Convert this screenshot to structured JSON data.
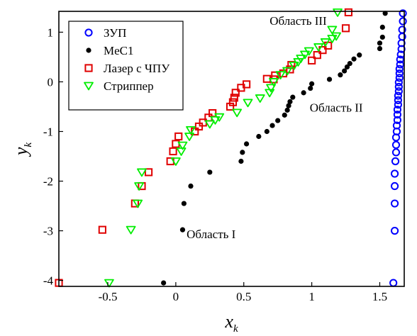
{
  "chart_data": {
    "type": "scatter",
    "title": "",
    "xlabel": "x",
    "xlabel_sub": "k",
    "ylabel": "y",
    "ylabel_sub": "k",
    "xlim": [
      -0.86,
      1.68
    ],
    "ylim": [
      -4.12,
      1.42
    ],
    "x_ticks": [
      -0.5,
      0,
      0.5,
      1,
      1.5
    ],
    "x_tick_labels": [
      "-0.5",
      "0",
      "0.5",
      "1",
      "1.5"
    ],
    "y_ticks": [
      -4,
      -3,
      -2,
      -1,
      0,
      1
    ],
    "y_tick_labels": [
      "-4",
      "-3",
      "-2",
      "-1",
      "0",
      "1"
    ],
    "grid": false,
    "legend_position": "top-left",
    "series": [
      {
        "name": "ЗУП",
        "marker": "circle-open",
        "color": "#0000ff",
        "points": [
          [
            1.6,
            -4.05
          ],
          [
            1.61,
            -3.0
          ],
          [
            1.61,
            -2.45
          ],
          [
            1.61,
            -2.1
          ],
          [
            1.61,
            -1.85
          ],
          [
            1.615,
            -1.6
          ],
          [
            1.62,
            -1.42
          ],
          [
            1.62,
            -1.27
          ],
          [
            1.62,
            -1.12
          ],
          [
            1.625,
            -1.0
          ],
          [
            1.625,
            -0.88
          ],
          [
            1.63,
            -0.77
          ],
          [
            1.63,
            -0.66
          ],
          [
            1.63,
            -0.56
          ],
          [
            1.635,
            -0.46
          ],
          [
            1.635,
            -0.37
          ],
          [
            1.635,
            -0.28
          ],
          [
            1.64,
            -0.19
          ],
          [
            1.64,
            -0.1
          ],
          [
            1.64,
            -0.01
          ],
          [
            1.645,
            0.08
          ],
          [
            1.645,
            0.17
          ],
          [
            1.645,
            0.26
          ],
          [
            1.65,
            0.35
          ],
          [
            1.65,
            0.45
          ],
          [
            1.655,
            0.55
          ],
          [
            1.66,
            0.66
          ],
          [
            1.66,
            0.78
          ],
          [
            1.665,
            0.91
          ],
          [
            1.665,
            1.05
          ],
          [
            1.67,
            1.22
          ],
          [
            1.67,
            1.38
          ]
        ]
      },
      {
        "name": "MeC1",
        "marker": "dot",
        "color": "#000000",
        "points": [
          [
            -0.09,
            -4.05
          ],
          [
            0.05,
            -2.98
          ],
          [
            0.06,
            -2.45
          ],
          [
            0.11,
            -2.1
          ],
          [
            0.25,
            -1.82
          ],
          [
            0.48,
            -1.6
          ],
          [
            0.49,
            -1.42
          ],
          [
            0.52,
            -1.25
          ],
          [
            0.61,
            -1.1
          ],
          [
            0.67,
            -1.0
          ],
          [
            0.71,
            -0.88
          ],
          [
            0.75,
            -0.78
          ],
          [
            0.8,
            -0.67
          ],
          [
            0.82,
            -0.57
          ],
          [
            0.83,
            -0.48
          ],
          [
            0.84,
            -0.4
          ],
          [
            0.86,
            -0.31
          ],
          [
            0.94,
            -0.22
          ],
          [
            0.99,
            -0.13
          ],
          [
            1.0,
            -0.04
          ],
          [
            1.13,
            0.05
          ],
          [
            1.21,
            0.14
          ],
          [
            1.24,
            0.22
          ],
          [
            1.26,
            0.3
          ],
          [
            1.28,
            0.37
          ],
          [
            1.31,
            0.46
          ],
          [
            1.35,
            0.54
          ],
          [
            1.5,
            0.67
          ],
          [
            1.5,
            0.78
          ],
          [
            1.52,
            0.9
          ],
          [
            1.52,
            1.1
          ],
          [
            1.54,
            1.38
          ]
        ]
      },
      {
        "name": "Лазер с ЧПУ",
        "marker": "square-open",
        "color": "#e00000",
        "points": [
          [
            -0.86,
            -4.05
          ],
          [
            -0.54,
            -2.98
          ],
          [
            -0.3,
            -2.45
          ],
          [
            -0.25,
            -2.1
          ],
          [
            -0.2,
            -1.82
          ],
          [
            -0.04,
            -1.6
          ],
          [
            -0.02,
            -1.4
          ],
          [
            0.0,
            -1.25
          ],
          [
            0.02,
            -1.1
          ],
          [
            0.14,
            -1.0
          ],
          [
            0.17,
            -0.9
          ],
          [
            0.2,
            -0.82
          ],
          [
            0.24,
            -0.72
          ],
          [
            0.27,
            -0.63
          ],
          [
            0.4,
            -0.5
          ],
          [
            0.42,
            -0.41
          ],
          [
            0.43,
            -0.32
          ],
          [
            0.44,
            -0.22
          ],
          [
            0.48,
            -0.12
          ],
          [
            0.52,
            -0.05
          ],
          [
            0.67,
            0.06
          ],
          [
            0.72,
            0.05
          ],
          [
            0.73,
            0.13
          ],
          [
            0.79,
            0.17
          ],
          [
            0.84,
            0.25
          ],
          [
            0.85,
            0.34
          ],
          [
            1.0,
            0.43
          ],
          [
            1.04,
            0.54
          ],
          [
            1.08,
            0.64
          ],
          [
            1.12,
            0.73
          ],
          [
            1.25,
            1.08
          ],
          [
            1.27,
            1.4
          ]
        ]
      },
      {
        "name": "Стриппер",
        "marker": "triangle-down-open",
        "color": "#00ee00",
        "points": [
          [
            -0.49,
            -4.05
          ],
          [
            -0.33,
            -2.98
          ],
          [
            -0.28,
            -2.45
          ],
          [
            -0.27,
            -2.1
          ],
          [
            -0.25,
            -1.82
          ],
          [
            0.0,
            -1.6
          ],
          [
            0.04,
            -1.4
          ],
          [
            0.05,
            -1.28
          ],
          [
            0.1,
            -1.1
          ],
          [
            0.11,
            -0.97
          ],
          [
            0.25,
            -0.85
          ],
          [
            0.29,
            -0.77
          ],
          [
            0.32,
            -0.71
          ],
          [
            0.45,
            -0.62
          ],
          [
            0.53,
            -0.42
          ],
          [
            0.62,
            -0.33
          ],
          [
            0.69,
            -0.22
          ],
          [
            0.7,
            -0.12
          ],
          [
            0.72,
            0.0
          ],
          [
            0.77,
            0.14
          ],
          [
            0.82,
            0.22
          ],
          [
            0.87,
            0.33
          ],
          [
            0.9,
            0.4
          ],
          [
            0.92,
            0.47
          ],
          [
            0.95,
            0.55
          ],
          [
            0.98,
            0.62
          ],
          [
            1.05,
            0.7
          ],
          [
            1.1,
            0.8
          ],
          [
            1.15,
            0.87
          ],
          [
            1.18,
            0.92
          ],
          [
            1.15,
            1.05
          ],
          [
            1.19,
            1.4
          ]
        ]
      }
    ],
    "annotations": [
      {
        "text": "Область III",
        "x": 0.9,
        "y": 1.15
      },
      {
        "text": "Область II",
        "x": 1.18,
        "y": -0.6
      },
      {
        "text": "Область I",
        "x": 0.26,
        "y": -3.15
      }
    ]
  }
}
